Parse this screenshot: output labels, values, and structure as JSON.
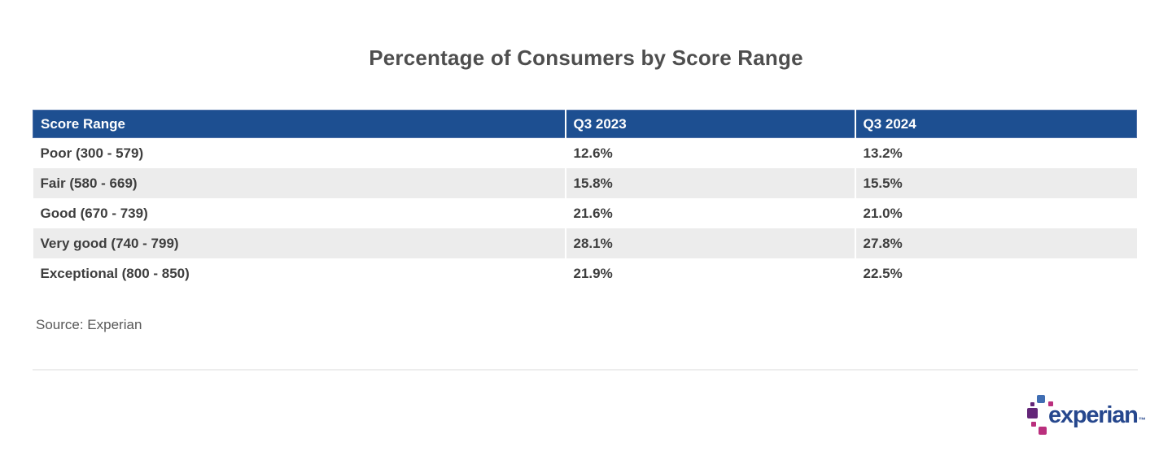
{
  "title": "Percentage of Consumers by Score Range",
  "source": "Source: Experian",
  "table": {
    "columns": [
      "Score Range",
      "Q3 2023",
      "Q3 2024"
    ],
    "rows": [
      [
        "Poor (300 - 579)",
        "12.6%",
        "13.2%"
      ],
      [
        "Fair (580 - 669)",
        "15.8%",
        "15.5%"
      ],
      [
        "Good (670 - 739)",
        "21.6%",
        "21.0%"
      ],
      [
        "Very good (740 - 799)",
        "28.1%",
        "27.8%"
      ],
      [
        "Exceptional (800 - 850)",
        "21.9%",
        "22.5%"
      ]
    ]
  },
  "chart_data": {
    "type": "table",
    "title": "Percentage of Consumers by Score Range",
    "categories": [
      "Poor (300 - 579)",
      "Fair (580 - 669)",
      "Good (670 - 739)",
      "Very good (740 - 799)",
      "Exceptional (800 - 850)"
    ],
    "series": [
      {
        "name": "Q3 2023",
        "values": [
          12.6,
          15.8,
          21.6,
          28.1,
          21.9
        ]
      },
      {
        "name": "Q3 2024",
        "values": [
          13.2,
          15.5,
          21.0,
          27.8,
          22.5
        ]
      }
    ],
    "unit": "%",
    "source": "Experian",
    "layout": {
      "header_bg": "#1d4f91",
      "header_text": "#ffffff",
      "alt_row_bg": "#ececec",
      "body_text": "#3e3e3e"
    }
  },
  "logo": {
    "wordmark": "experian",
    "trademark": "™",
    "colors": {
      "wordmark": "#26478d",
      "blue": "#406eb3",
      "purple": "#632678",
      "magenta": "#ba2f7d"
    }
  }
}
